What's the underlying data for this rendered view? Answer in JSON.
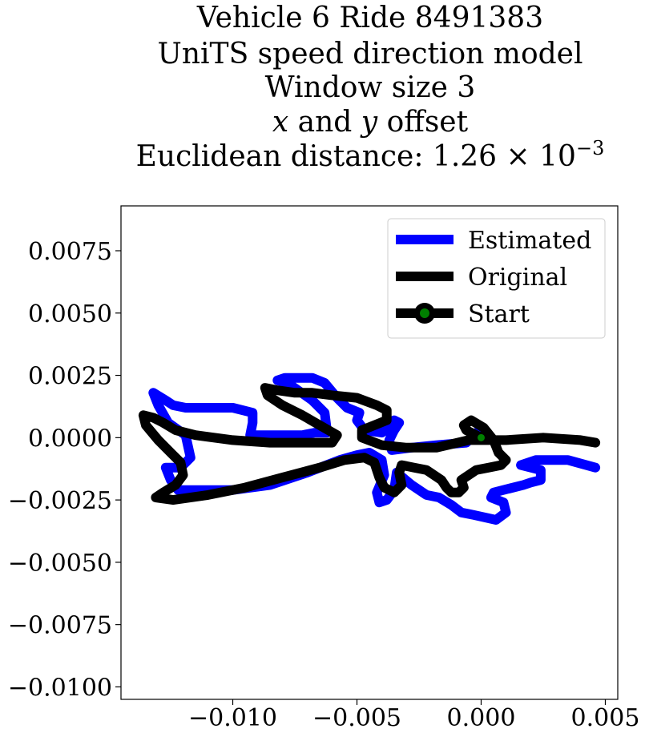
{
  "chart_data": {
    "type": "line",
    "title": {
      "lines": [
        "Vehicle 6 Ride 8491383",
        "UniTS speed direction model",
        "Window size 3"
      ],
      "offset_line": {
        "x_var": "x",
        "middle": " and ",
        "y_var": "y",
        "end": " offset"
      },
      "distance_line": {
        "prefix": "Euclidean distance: ",
        "mantissa": "1.26",
        "times": "×",
        "base": "10",
        "exponent": "−3"
      }
    },
    "xlabel": "",
    "ylabel": "",
    "xlim": [
      -0.0145,
      0.0055
    ],
    "ylim": [
      -0.0105,
      0.0093
    ],
    "x_ticks": [
      {
        "value": -0.01,
        "label": "−0.010"
      },
      {
        "value": -0.005,
        "label": "−0.005"
      },
      {
        "value": 0.0,
        "label": "0.000"
      },
      {
        "value": 0.005,
        "label": "0.005"
      }
    ],
    "y_ticks": [
      {
        "value": 0.0075,
        "label": "0.0075"
      },
      {
        "value": 0.005,
        "label": "0.0050"
      },
      {
        "value": 0.0025,
        "label": "0.0025"
      },
      {
        "value": 0.0,
        "label": "0.0000"
      },
      {
        "value": -0.0025,
        "label": "−0.0025"
      },
      {
        "value": -0.005,
        "label": "−0.0050"
      },
      {
        "value": -0.0075,
        "label": "−0.0075"
      },
      {
        "value": -0.01,
        "label": "−0.0100"
      }
    ],
    "grid": false,
    "legend": {
      "placement": "top-right",
      "entries": [
        {
          "label": "Estimated",
          "series": "estimated"
        },
        {
          "label": "Original",
          "series": "original"
        },
        {
          "label": "Start",
          "series": "start"
        }
      ]
    },
    "series": [
      {
        "name": "Estimated",
        "key": "estimated",
        "color": "#0000ff",
        "points": [
          [
            0.0046,
            -0.0012
          ],
          [
            0.0035,
            -0.0009
          ],
          [
            0.0022,
            -0.0009
          ],
          [
            0.0016,
            -0.0011
          ],
          [
            0.0024,
            -0.0013
          ],
          [
            0.0024,
            -0.0017
          ],
          [
            0.002,
            -0.0018
          ],
          [
            0.0017,
            -0.0019
          ],
          [
            0.0005,
            -0.0022
          ],
          [
            0.0004,
            -0.0024
          ],
          [
            0.0009,
            -0.0026
          ],
          [
            0.001,
            -0.003
          ],
          [
            0.0006,
            -0.0033
          ],
          [
            -0.0003,
            -0.0031
          ],
          [
            -0.0008,
            -0.003
          ],
          [
            -0.0012,
            -0.0027
          ],
          [
            -0.0017,
            -0.0024
          ],
          [
            -0.0022,
            -0.0023
          ],
          [
            -0.0028,
            -0.0019
          ],
          [
            -0.0034,
            -0.0014
          ],
          [
            -0.0035,
            -0.0021
          ],
          [
            -0.0038,
            -0.0025
          ],
          [
            -0.0041,
            -0.0026
          ],
          [
            -0.0042,
            -0.0022
          ],
          [
            -0.0039,
            -0.0015
          ],
          [
            -0.004,
            -0.0009
          ],
          [
            -0.0045,
            -0.0006
          ],
          [
            -0.005,
            -0.0007
          ],
          [
            -0.0057,
            -0.0009
          ],
          [
            -0.007,
            -0.0014
          ],
          [
            -0.0085,
            -0.0019
          ],
          [
            -0.01,
            -0.0021
          ],
          [
            -0.0115,
            -0.0021
          ],
          [
            -0.0122,
            -0.0021
          ],
          [
            -0.0125,
            -0.0017
          ],
          [
            -0.0127,
            -0.0012
          ],
          [
            -0.0121,
            -0.0012
          ],
          [
            -0.0117,
            -0.0008
          ],
          [
            -0.0119,
            0.0001
          ],
          [
            -0.0126,
            0.0006
          ],
          [
            -0.013,
            0.0013
          ],
          [
            -0.0132,
            0.0018
          ],
          [
            -0.0127,
            0.0015
          ],
          [
            -0.0124,
            0.0013
          ],
          [
            -0.0119,
            0.0012
          ],
          [
            -0.011,
            0.0012
          ],
          [
            -0.01,
            0.0012
          ],
          [
            -0.0092,
            0.001
          ],
          [
            -0.0092,
            0.0006
          ],
          [
            -0.0093,
            0.0001
          ],
          [
            -0.0084,
            0.0001
          ],
          [
            -0.0076,
            0.0001
          ],
          [
            -0.0072,
            0.0001
          ],
          [
            -0.0067,
            0.0002
          ],
          [
            -0.0062,
            0.0002
          ],
          [
            -0.0063,
            0.001
          ],
          [
            -0.0068,
            0.0015
          ],
          [
            -0.0078,
            0.0022
          ],
          [
            -0.0082,
            0.0023
          ],
          [
            -0.0079,
            0.0024
          ],
          [
            -0.0068,
            0.0024
          ],
          [
            -0.0063,
            0.0022
          ],
          [
            -0.0058,
            0.0016
          ],
          [
            -0.0054,
            0.0012
          ],
          [
            -0.0049,
            0.001
          ],
          [
            -0.005,
            0.0007
          ],
          [
            -0.0047,
            0.0003
          ],
          [
            -0.004,
            0.0002
          ],
          [
            -0.0037,
            0.0004
          ],
          [
            -0.0035,
            0.0007
          ],
          [
            -0.0033,
            0.0006
          ],
          [
            -0.0035,
            0.0003
          ],
          [
            -0.0037,
            -0.0001
          ],
          [
            -0.0036,
            -0.0005
          ],
          [
            -0.0028,
            -0.0004
          ],
          [
            -0.0018,
            -0.0003
          ],
          [
            -0.0006,
            -0.0002
          ],
          [
            -0.0002,
            0.0002
          ],
          [
            0.0,
            0.0
          ]
        ]
      },
      {
        "name": "Original",
        "key": "original",
        "color": "#000000",
        "points": [
          [
            0.0,
            0.0
          ],
          [
            -0.0006,
            0.0003
          ],
          [
            -0.0007,
            0.0005
          ],
          [
            -0.0004,
            0.0007
          ],
          [
            0.0001,
            0.0004
          ],
          [
            0.0005,
            -0.0001
          ],
          [
            0.0007,
            -0.0006
          ],
          [
            0.001,
            -0.0009
          ],
          [
            0.0008,
            -0.0011
          ],
          [
            0.0003,
            -0.0012
          ],
          [
            -0.0002,
            -0.0013
          ],
          [
            -0.0005,
            -0.0015
          ],
          [
            -0.0008,
            -0.0017
          ],
          [
            -0.0007,
            -0.002
          ],
          [
            -0.0009,
            -0.0022
          ],
          [
            -0.0012,
            -0.0022
          ],
          [
            -0.0014,
            -0.002
          ],
          [
            -0.0016,
            -0.0017
          ],
          [
            -0.0022,
            -0.0013
          ],
          [
            -0.0027,
            -0.0012
          ],
          [
            -0.0032,
            -0.0011
          ],
          [
            -0.0033,
            -0.0014
          ],
          [
            -0.0032,
            -0.0019
          ],
          [
            -0.0035,
            -0.0022
          ],
          [
            -0.0039,
            -0.002
          ],
          [
            -0.0041,
            -0.0016
          ],
          [
            -0.0043,
            -0.001
          ],
          [
            -0.0047,
            -0.0008
          ],
          [
            -0.0055,
            -0.0009
          ],
          [
            -0.0065,
            -0.0012
          ],
          [
            -0.008,
            -0.0016
          ],
          [
            -0.0095,
            -0.002
          ],
          [
            -0.011,
            -0.0023
          ],
          [
            -0.0124,
            -0.0025
          ],
          [
            -0.0131,
            -0.0024
          ],
          [
            -0.0128,
            -0.0022
          ],
          [
            -0.0123,
            -0.0019
          ],
          [
            -0.012,
            -0.0015
          ],
          [
            -0.0121,
            -0.001
          ],
          [
            -0.0125,
            -0.0006
          ],
          [
            -0.013,
            -0.0001
          ],
          [
            -0.0135,
            0.0005
          ],
          [
            -0.0136,
            0.0009
          ],
          [
            -0.0132,
            0.0008
          ],
          [
            -0.0128,
            0.0006
          ],
          [
            -0.0123,
            0.0003
          ],
          [
            -0.0115,
            0.0001
          ],
          [
            -0.01,
            -0.0001
          ],
          [
            -0.0085,
            -0.0002
          ],
          [
            -0.007,
            -0.0002
          ],
          [
            -0.006,
            -0.0002
          ],
          [
            -0.0058,
            0.0001
          ],
          [
            -0.0065,
            0.0005
          ],
          [
            -0.0072,
            0.0009
          ],
          [
            -0.008,
            0.0013
          ],
          [
            -0.0086,
            0.0017
          ],
          [
            -0.0087,
            0.002
          ],
          [
            -0.0082,
            0.0019
          ],
          [
            -0.0075,
            0.0018
          ],
          [
            -0.0068,
            0.0018
          ],
          [
            -0.006,
            0.0017
          ],
          [
            -0.005,
            0.0016
          ],
          [
            -0.0042,
            0.0013
          ],
          [
            -0.0038,
            0.0011
          ],
          [
            -0.0038,
            0.0007
          ],
          [
            -0.0043,
            0.0005
          ],
          [
            -0.0048,
            0.0003
          ],
          [
            -0.0048,
            0.0
          ],
          [
            -0.004,
            -0.0003
          ],
          [
            -0.003,
            -0.0004
          ],
          [
            -0.0018,
            -0.0004
          ],
          [
            -0.0005,
            -0.0001
          ],
          [
            0.001,
            -0.0001
          ],
          [
            0.0025,
            0.0
          ],
          [
            0.004,
            -0.0001
          ],
          [
            0.0046,
            -0.0002
          ]
        ]
      }
    ],
    "start_point": {
      "name": "Start",
      "x": 0.0,
      "y": 0.0,
      "fill": "#008000",
      "edge": "#000000"
    }
  }
}
